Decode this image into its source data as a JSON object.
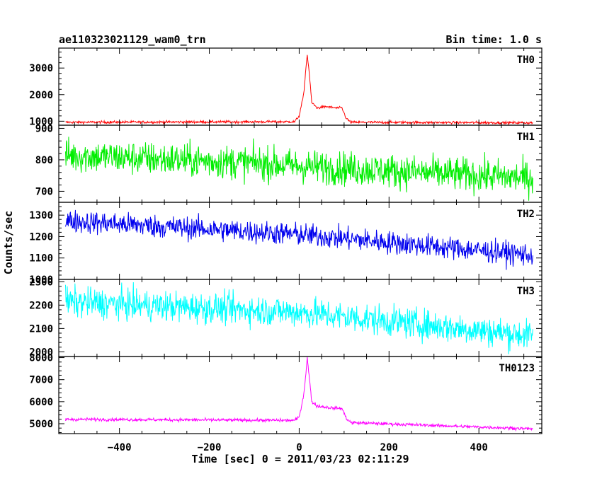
{
  "header": {
    "title": "ae110323021129_wam0_trn",
    "bin_time": "Bin time: 1.0 s"
  },
  "chart_data": {
    "type": "line",
    "title": "ae110323021129_wam0_trn",
    "xlabel": "Time [sec] 0 = 2011/03/23 02:11:29",
    "ylabel": "Counts/sec",
    "xlim": [
      -535,
      540
    ],
    "x_ticks": [
      -400,
      -200,
      0,
      200,
      400
    ],
    "x_tick_labels": [
      "−400",
      "−200",
      "0",
      "200",
      "400"
    ],
    "x_range_data": [
      -520,
      520
    ],
    "bin_time_s": 1.0,
    "panels": [
      {
        "name": "TH0",
        "color": "#ff0000",
        "ylim": [
          850,
          3750
        ],
        "yticks": [
          1000,
          2000,
          3000
        ],
        "baseline_start": 960,
        "baseline_end": 940,
        "noise": 40,
        "profile": [
          [
            -535,
            960
          ],
          [
            -10,
            980
          ],
          [
            0,
            1200
          ],
          [
            10,
            2000
          ],
          [
            15,
            3000
          ],
          [
            18,
            3500
          ],
          [
            22,
            2900
          ],
          [
            28,
            1700
          ],
          [
            40,
            1500
          ],
          [
            60,
            1550
          ],
          [
            80,
            1500
          ],
          [
            95,
            1500
          ],
          [
            105,
            1100
          ],
          [
            115,
            960
          ],
          [
            540,
            940
          ]
        ]
      },
      {
        "name": "TH1",
        "color": "#00ee00",
        "ylim": [
          665,
          910
        ],
        "yticks": [
          700,
          800,
          900
        ],
        "baseline_start": 815,
        "baseline_end": 740,
        "noise": 45,
        "profile": [
          [
            -535,
            815
          ],
          [
            -100,
            790
          ],
          [
            0,
            780
          ],
          [
            540,
            740
          ]
        ]
      },
      {
        "name": "TH2",
        "color": "#0000ee",
        "ylim": [
          1000,
          1360
        ],
        "yticks": [
          1000,
          1100,
          1200,
          1300
        ],
        "baseline_start": 1275,
        "baseline_end": 1110,
        "noise": 45,
        "profile": [
          [
            -535,
            1275
          ],
          [
            0,
            1210
          ],
          [
            540,
            1110
          ]
        ]
      },
      {
        "name": "TH3",
        "color": "#00ffff",
        "ylim": [
          1980,
          2310
        ],
        "yticks": [
          2000,
          2100,
          2200,
          2300
        ],
        "baseline_start": 2215,
        "baseline_end": 2065,
        "noise": 55,
        "profile": [
          [
            -535,
            2215
          ],
          [
            0,
            2170
          ],
          [
            540,
            2065
          ]
        ]
      },
      {
        "name": "TH0123",
        "color": "#ff00ff",
        "ylim": [
          4550,
          8050
        ],
        "yticks": [
          5000,
          6000,
          7000,
          8000
        ],
        "baseline_start": 5200,
        "baseline_end": 4750,
        "noise": 60,
        "profile": [
          [
            -535,
            5200
          ],
          [
            -10,
            5150
          ],
          [
            0,
            5300
          ],
          [
            10,
            6300
          ],
          [
            15,
            7300
          ],
          [
            18,
            8000
          ],
          [
            22,
            7200
          ],
          [
            28,
            6000
          ],
          [
            40,
            5800
          ],
          [
            60,
            5750
          ],
          [
            80,
            5700
          ],
          [
            95,
            5700
          ],
          [
            105,
            5250
          ],
          [
            115,
            5050
          ],
          [
            540,
            4750
          ]
        ]
      }
    ]
  }
}
